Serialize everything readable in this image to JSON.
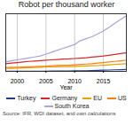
{
  "chart_data": {
    "type": "line",
    "title": "Robot per thousand worker",
    "x_label": "Year",
    "caption": "Source: IFR, WDI dataset, and own calculations",
    "x": [
      1998,
      1999,
      2000,
      2001,
      2002,
      2003,
      2004,
      2005,
      2006,
      2007,
      2008,
      2009,
      2010,
      2011,
      2012,
      2013,
      2014,
      2015,
      2016,
      2017,
      2018,
      2019
    ],
    "series": [
      {
        "name": "Turkey",
        "color": "#1f3b8c",
        "values": [
          0.05,
          0.05,
          0.06,
          0.07,
          0.08,
          0.09,
          0.1,
          0.12,
          0.14,
          0.16,
          0.18,
          0.2,
          0.25,
          0.3,
          0.35,
          0.4,
          0.5,
          0.6,
          0.7,
          0.8,
          0.9,
          1.0
        ]
      },
      {
        "name": "Germany",
        "color": "#d62728",
        "values": [
          4,
          4.3,
          4.6,
          4.9,
          5.2,
          5.4,
          5.6,
          5.8,
          6,
          6.2,
          6.4,
          6.5,
          6.7,
          6.9,
          7.1,
          7.4,
          7.7,
          8,
          8.4,
          8.8,
          9.3,
          9.7
        ]
      },
      {
        "name": "EU",
        "color": "#e6a100",
        "values": [
          1.5,
          1.6,
          1.7,
          1.8,
          1.9,
          2,
          2.1,
          2.2,
          2.3,
          2.4,
          2.5,
          2.5,
          2.6,
          2.7,
          2.8,
          2.9,
          3,
          3.2,
          3.4,
          3.6,
          3.8,
          4
        ]
      },
      {
        "name": "US",
        "color": "#ff7f0e",
        "values": [
          2,
          2.1,
          2.2,
          2.3,
          2.4,
          2.5,
          2.6,
          2.7,
          2.9,
          3.1,
          3.2,
          3.2,
          3.4,
          3.6,
          3.8,
          4,
          4.3,
          4.6,
          4.9,
          5.2,
          5.5,
          5.8
        ]
      },
      {
        "name": "South Korea",
        "color": "#a9a3d9",
        "values": [
          5,
          5.5,
          6,
          6.5,
          7,
          7.5,
          8,
          9,
          10,
          11,
          12,
          13,
          14,
          16,
          17,
          18,
          19.5,
          21,
          23,
          25,
          27,
          29
        ]
      }
    ],
    "xlim": [
      1998,
      2019
    ],
    "xticks": [
      2000,
      2005,
      2010,
      2015
    ],
    "ylim": [
      0,
      30
    ],
    "grid": true,
    "legend": "bottom",
    "tick_labels": "x"
  }
}
